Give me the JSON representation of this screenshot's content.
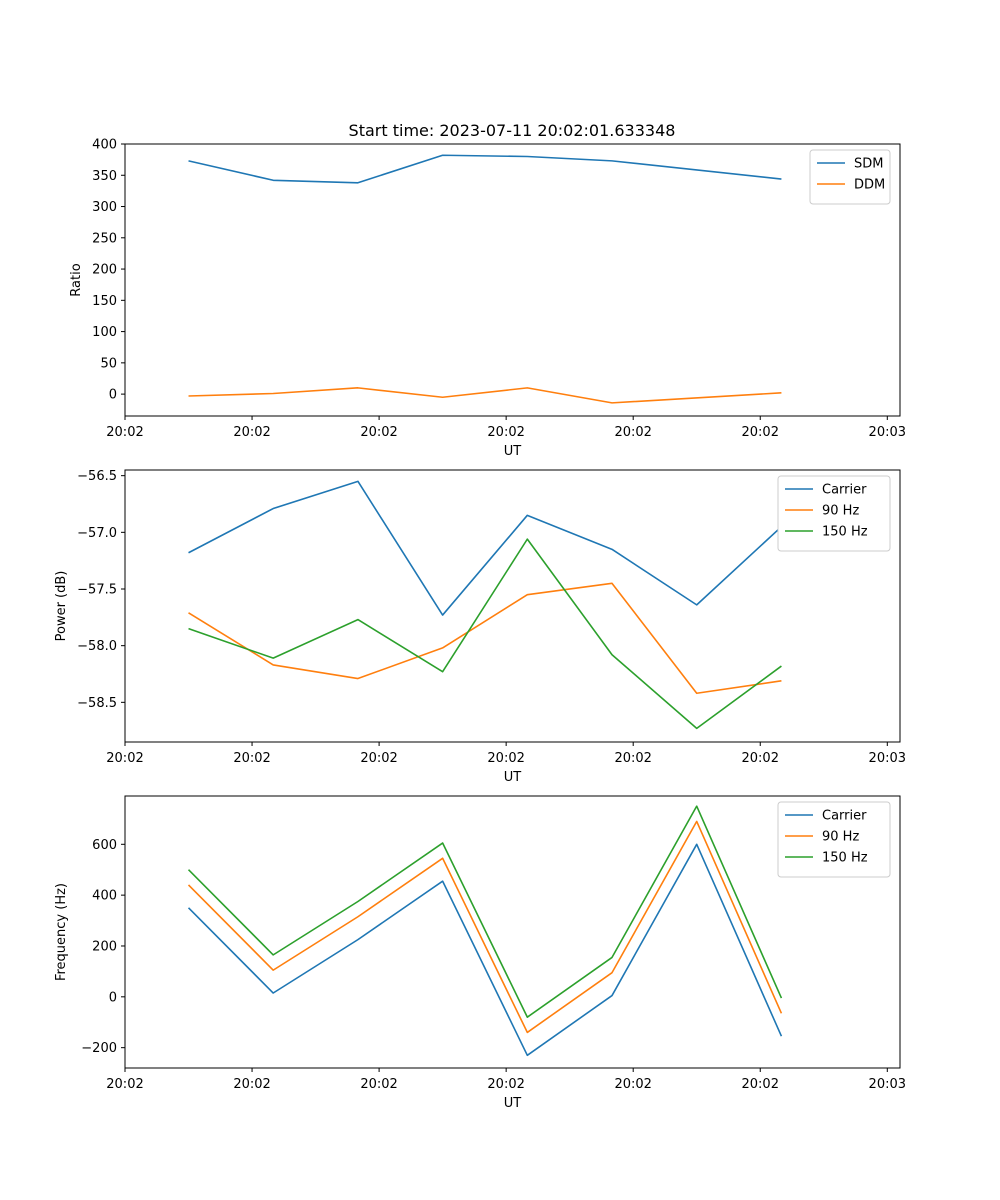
{
  "figure": {
    "title": "Start time: 2023-07-11 20:02:01.633348"
  },
  "chart_data": [
    {
      "type": "line",
      "title": "Start time: 2023-07-11 20:02:01.633348",
      "xlabel": "UT",
      "ylabel": "Ratio",
      "x": [
        0,
        1,
        2,
        3,
        4,
        5,
        6,
        7
      ],
      "xlim": [
        -0.75,
        8.4
      ],
      "xticks": [
        -0.75,
        0.75,
        2.25,
        3.75,
        5.25,
        6.75,
        8.25
      ],
      "xtick_labels": [
        "20:02",
        "20:02",
        "20:02",
        "20:02",
        "20:02",
        "20:02",
        "20:03"
      ],
      "ylim": [
        -35,
        400
      ],
      "yticks": [
        0,
        50,
        100,
        150,
        200,
        250,
        300,
        350,
        400
      ],
      "ytick_labels": [
        "0",
        "50",
        "100",
        "150",
        "200",
        "250",
        "300",
        "350",
        "400"
      ],
      "legend_position": "top-right",
      "grid": false,
      "series": [
        {
          "name": "SDM",
          "color": "#1f77b4",
          "x": [
            0,
            1,
            2,
            3,
            4,
            5,
            7
          ],
          "values": [
            373,
            342,
            338,
            382,
            380,
            373,
            344
          ]
        },
        {
          "name": "DDM",
          "color": "#ff7f0e",
          "x": [
            0,
            1,
            2,
            3,
            4,
            5,
            7
          ],
          "values": [
            -3,
            1,
            10,
            -5,
            10,
            -14,
            2
          ]
        }
      ]
    },
    {
      "type": "line",
      "title": "",
      "xlabel": "UT",
      "ylabel": "Power (dB)",
      "x": [
        0,
        1,
        2,
        3,
        4,
        5,
        6,
        7
      ],
      "xlim": [
        -0.75,
        8.4
      ],
      "xticks": [
        -0.75,
        0.75,
        2.25,
        3.75,
        5.25,
        6.75,
        8.25
      ],
      "xtick_labels": [
        "20:02",
        "20:02",
        "20:02",
        "20:02",
        "20:02",
        "20:02",
        "20:03"
      ],
      "ylim": [
        -58.85,
        -56.45
      ],
      "yticks": [
        -58.5,
        -58.0,
        -57.5,
        -57.0,
        -56.5
      ],
      "ytick_labels": [
        "−58.5",
        "−58.0",
        "−57.5",
        "−57.0",
        "−56.5"
      ],
      "legend_position": "top-right",
      "grid": false,
      "series": [
        {
          "name": "Carrier",
          "color": "#1f77b4",
          "values": [
            -57.18,
            -56.79,
            -56.55,
            -57.73,
            -56.85,
            -57.15,
            -57.64,
            -56.95
          ]
        },
        {
          "name": "90 Hz",
          "color": "#ff7f0e",
          "values": [
            -57.71,
            -58.17,
            -58.29,
            -58.02,
            -57.55,
            -57.45,
            -58.42,
            -58.31
          ]
        },
        {
          "name": "150 Hz",
          "color": "#2ca02c",
          "values": [
            -57.85,
            -58.11,
            -57.77,
            -58.23,
            -57.06,
            -58.08,
            -58.73,
            -58.18
          ]
        }
      ]
    },
    {
      "type": "line",
      "title": "",
      "xlabel": "UT",
      "ylabel": "Frequency (Hz)",
      "x": [
        0,
        1,
        2,
        3,
        4,
        5,
        6,
        7
      ],
      "xlim": [
        -0.75,
        8.4
      ],
      "xticks": [
        -0.75,
        0.75,
        2.25,
        3.75,
        5.25,
        6.75,
        8.25
      ],
      "xtick_labels": [
        "20:02",
        "20:02",
        "20:02",
        "20:02",
        "20:02",
        "20:02",
        "20:03"
      ],
      "ylim": [
        -280,
        790
      ],
      "yticks": [
        -200,
        0,
        200,
        400,
        600
      ],
      "ytick_labels": [
        "−200",
        "0",
        "200",
        "400",
        "600"
      ],
      "legend_position": "top-right",
      "grid": false,
      "series": [
        {
          "name": "Carrier",
          "color": "#1f77b4",
          "values": [
            350,
            15,
            225,
            455,
            -230,
            5,
            600,
            -155
          ]
        },
        {
          "name": "90 Hz",
          "color": "#ff7f0e",
          "values": [
            440,
            105,
            315,
            545,
            -140,
            95,
            690,
            -65
          ]
        },
        {
          "name": "150 Hz",
          "color": "#2ca02c",
          "values": [
            500,
            165,
            375,
            605,
            -80,
            155,
            750,
            -5
          ]
        }
      ]
    }
  ]
}
